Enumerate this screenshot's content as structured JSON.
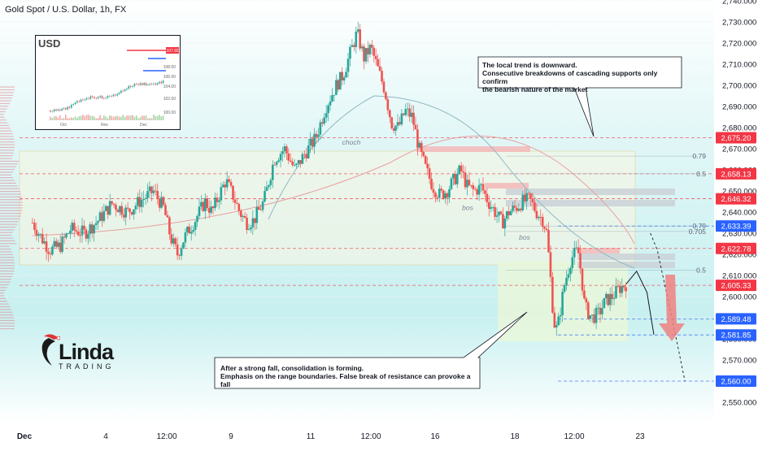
{
  "header": {
    "title": "Gold Spot / U.S. Dollar, 1h, FX"
  },
  "brand": {
    "name": "Linda",
    "sub": "TRADING"
  },
  "callouts": {
    "top": "The local trend is downward.\nConsecutive breakdowns of cascading supports only confirm\nthe bearish nature of the market",
    "bottom": "After a strong fall, consolidation is forming.\nEmphasis on the range boundaries. False break of resistance can provoke a fall"
  },
  "annotations": {
    "choch": "choch",
    "bos1": "bos",
    "bos2": "bos"
  },
  "fib_labels": [
    "0.79",
    "0.5",
    "0.79",
    "0.705",
    "0.5"
  ],
  "inset": {
    "title": "USD",
    "y_ticks": [
      "108.00",
      "106.00",
      "104.00",
      "102.00",
      "100.00"
    ],
    "x_ticks": [
      "Oct",
      "Nov",
      "Dec"
    ],
    "last_label": "107.92"
  },
  "colors": {
    "up": "#26a69a",
    "down": "#ef5350",
    "level_red": "#f23645",
    "level_blue": "#2962ff",
    "zone_green": "#e8f7e0"
  },
  "chart_data": {
    "type": "candlestick",
    "title": "Gold Spot / U.S. Dollar, 1h, FX",
    "y_ticks": [
      2550,
      2560,
      2570,
      2580,
      2590,
      2600,
      2610,
      2620,
      2630,
      2640,
      2650,
      2660,
      2670,
      2680,
      2690,
      2700,
      2710,
      2720,
      2730,
      2740
    ],
    "ylim": [
      2545,
      2745
    ],
    "x_ticks": [
      "Dec",
      "4",
      "12:00",
      "9",
      "11",
      "12:00",
      "16",
      "18",
      "12:00",
      "23"
    ],
    "price_labels": [
      {
        "value": "2,675.20",
        "kind": "red"
      },
      {
        "value": "2,658.13",
        "kind": "red"
      },
      {
        "value": "2,646.32",
        "kind": "red"
      },
      {
        "value": "2,633.39",
        "kind": "blue"
      },
      {
        "value": "2,622.78",
        "kind": "red"
      },
      {
        "value": "2,605.33",
        "kind": "red"
      },
      {
        "value": "2,589.48",
        "kind": "blue"
      },
      {
        "value": "2,581.85",
        "kind": "blue"
      },
      {
        "value": "2,560.00",
        "kind": "blue"
      }
    ],
    "price_path": [
      [
        0,
        2635
      ],
      [
        5,
        2628
      ],
      [
        10,
        2622
      ],
      [
        16,
        2624
      ],
      [
        22,
        2632
      ],
      [
        30,
        2630
      ],
      [
        38,
        2636
      ],
      [
        46,
        2644
      ],
      [
        55,
        2640
      ],
      [
        62,
        2645
      ],
      [
        70,
        2650
      ],
      [
        76,
        2642
      ],
      [
        80,
        2628
      ],
      [
        84,
        2620
      ],
      [
        88,
        2628
      ],
      [
        94,
        2636
      ],
      [
        100,
        2645
      ],
      [
        104,
        2640
      ],
      [
        108,
        2648
      ],
      [
        112,
        2655
      ],
      [
        116,
        2648
      ],
      [
        120,
        2640
      ],
      [
        124,
        2635
      ],
      [
        128,
        2636
      ],
      [
        134,
        2645
      ],
      [
        140,
        2665
      ],
      [
        146,
        2670
      ],
      [
        152,
        2660
      ],
      [
        158,
        2668
      ],
      [
        164,
        2675
      ],
      [
        170,
        2690
      ],
      [
        176,
        2700
      ],
      [
        180,
        2705
      ],
      [
        184,
        2715
      ],
      [
        188,
        2725
      ],
      [
        192,
        2713
      ],
      [
        196,
        2718
      ],
      [
        200,
        2708
      ],
      [
        204,
        2698
      ],
      [
        208,
        2682
      ],
      [
        212,
        2680
      ],
      [
        216,
        2688
      ],
      [
        220,
        2685
      ],
      [
        224,
        2670
      ],
      [
        228,
        2660
      ],
      [
        232,
        2652
      ],
      [
        236,
        2648
      ],
      [
        240,
        2650
      ],
      [
        244,
        2655
      ],
      [
        248,
        2660
      ],
      [
        252,
        2652
      ],
      [
        256,
        2650
      ],
      [
        260,
        2652
      ],
      [
        264,
        2645
      ],
      [
        268,
        2640
      ],
      [
        272,
        2635
      ],
      [
        276,
        2640
      ],
      [
        280,
        2642
      ],
      [
        284,
        2645
      ],
      [
        288,
        2646
      ],
      [
        292,
        2640
      ],
      [
        296,
        2636
      ],
      [
        298,
        2630
      ],
      [
        300,
        2610
      ],
      [
        302,
        2588
      ],
      [
        304,
        2584
      ],
      [
        308,
        2605
      ],
      [
        312,
        2618
      ],
      [
        316,
        2622
      ],
      [
        318,
        2610
      ],
      [
        320,
        2595
      ],
      [
        324,
        2590
      ],
      [
        328,
        2592
      ],
      [
        332,
        2598
      ],
      [
        336,
        2600
      ],
      [
        340,
        2604
      ],
      [
        344,
        2606
      ]
    ],
    "projection_path": [
      [
        344,
        2606
      ],
      [
        350,
        2612
      ],
      [
        356,
        2602
      ],
      [
        360,
        2582
      ]
    ]
  }
}
